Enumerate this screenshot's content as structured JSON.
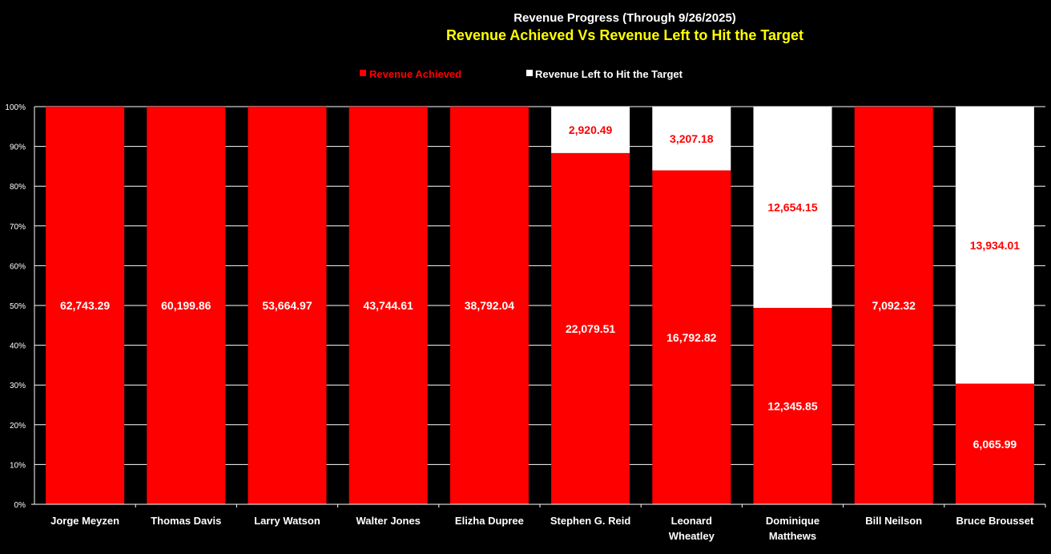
{
  "chart_data": {
    "type": "stacked-percent-bar",
    "title": "Revenue Progress (Through 9/26/2025)",
    "subtitle": "Revenue Achieved Vs Revenue Left to Hit the Target",
    "categories": [
      [
        "Jorge Meyzen"
      ],
      [
        "Thomas Davis"
      ],
      [
        "Larry Watson"
      ],
      [
        "Walter Jones"
      ],
      [
        "Elizha Dupree"
      ],
      [
        "Stephen G. Reid"
      ],
      [
        "Leonard",
        "Wheatley"
      ],
      [
        "Dominique",
        "Matthews"
      ],
      [
        "Bill Neilson"
      ],
      [
        "Bruce Brousset"
      ]
    ],
    "series": [
      {
        "name": "Revenue Achieved",
        "color": "#ff0000",
        "values": [
          62743.29,
          60199.86,
          53664.97,
          43744.61,
          38792.04,
          22079.51,
          16792.82,
          12345.85,
          7092.32,
          6065.99
        ],
        "labels": [
          "62,743.29",
          "60,199.86",
          "53,664.97",
          "43,744.61",
          "38,792.04",
          "22,079.51",
          "16,792.82",
          "12,345.85",
          "7,092.32",
          "6,065.99"
        ]
      },
      {
        "name": "Revenue Left to Hit the Target",
        "color": "#ffffff",
        "values": [
          0,
          0,
          0,
          0,
          0,
          2920.49,
          3207.18,
          12654.15,
          0,
          13934.01
        ],
        "labels": [
          "",
          "",
          "",
          "",
          "",
          "2,920.49",
          "3,207.18",
          "12,654.15",
          "",
          "13,934.01"
        ]
      }
    ],
    "yticks": [
      "0%",
      "10%",
      "20%",
      "30%",
      "40%",
      "50%",
      "60%",
      "70%",
      "80%",
      "90%",
      "100%"
    ],
    "ylim": [
      0,
      100
    ],
    "grid": true,
    "legend_position": "top-center",
    "colors": {
      "background": "#000000",
      "achieved": "#ff0000",
      "left": "#ffffff",
      "subtitle": "#ffff00",
      "grid": "#ffffff"
    }
  }
}
